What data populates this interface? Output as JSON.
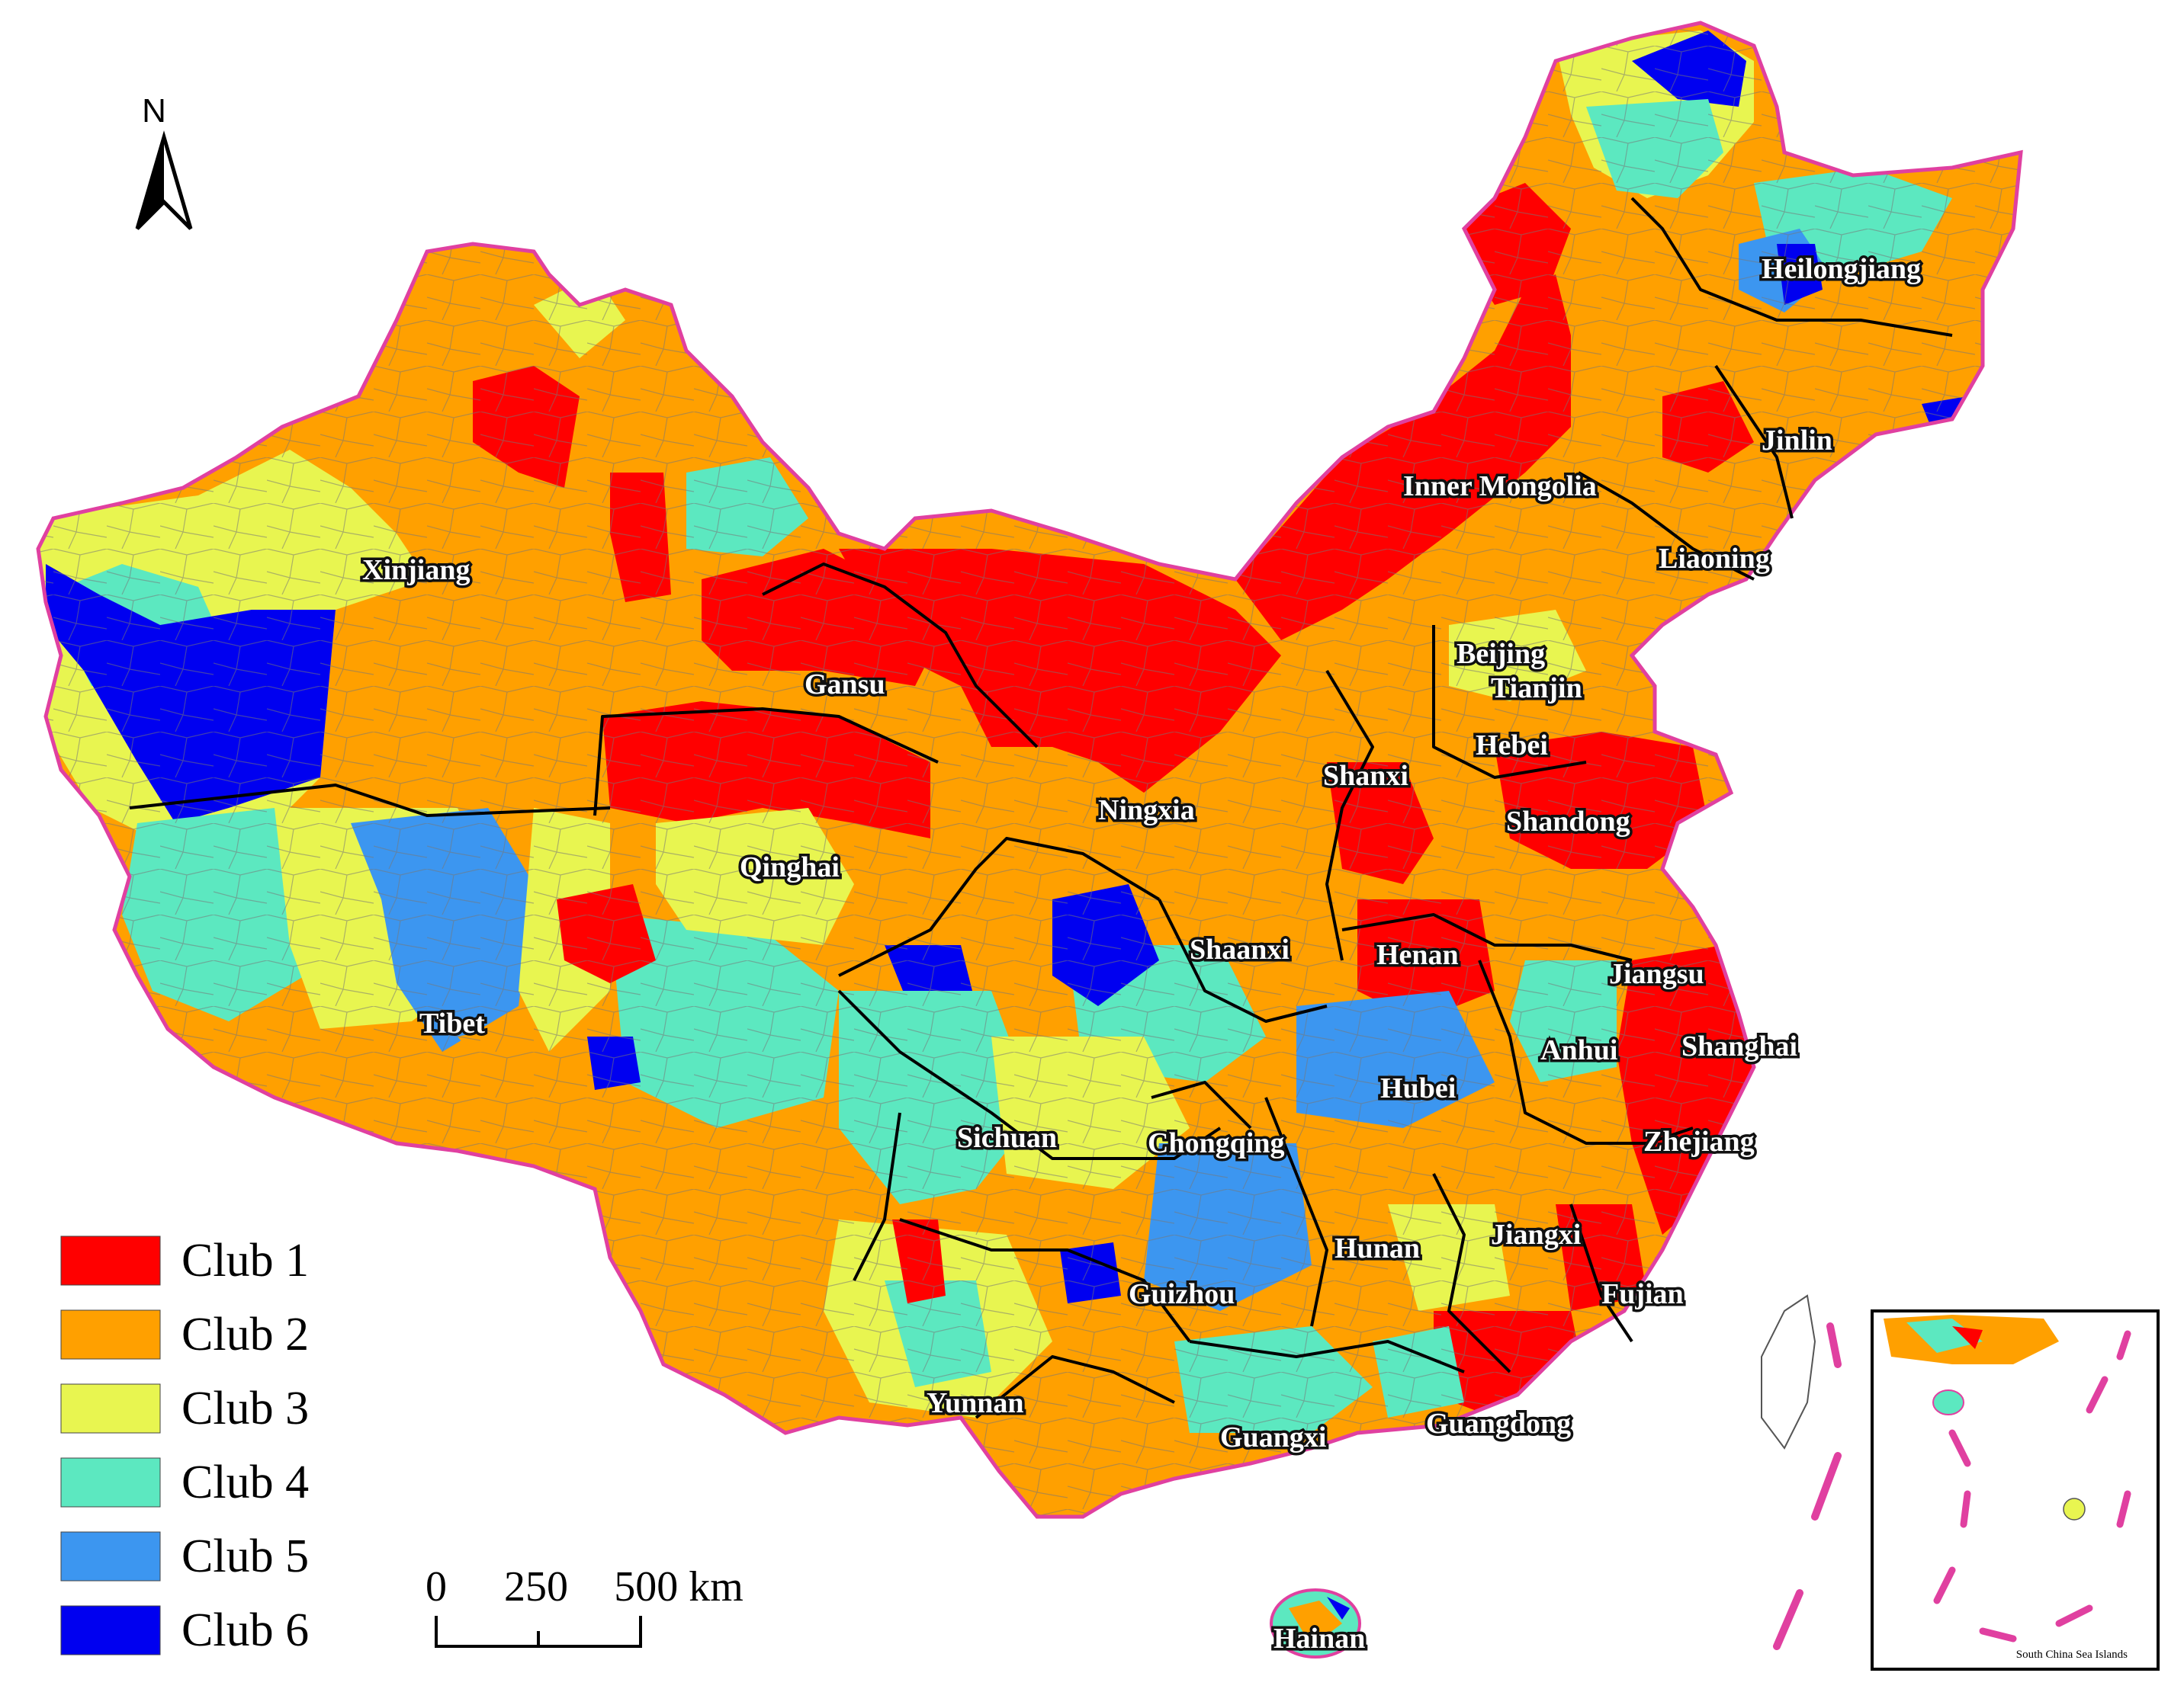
{
  "provinces": {
    "xinjiang": "Xinjiang",
    "tibet": "Tibet",
    "qinghai": "Qinghai",
    "gansu": "Gansu",
    "inner_mongolia": "Inner Mongolia",
    "heilongjiang": "Heilongjiang",
    "jinlin": "Jinlin",
    "liaoning": "Liaoning",
    "beijing": "Beijing",
    "tianjin": "Tianjin",
    "hebei": "Hebei",
    "shanxi": "Shanxi",
    "shandong": "Shandong",
    "ningxia": "Ningxia",
    "shaanxi": "Shaanxi",
    "henan": "Henan",
    "jiangsu": "Jiangsu",
    "anhui": "Anhui",
    "shanghai": "Shanghai",
    "hubei": "Hubei",
    "zhejiang": "Zhejiang",
    "sichuan": "Sichuan",
    "chongqing": "Chongqing",
    "hunan": "Hunan",
    "jiangxi": "Jiangxi",
    "fujian": "Fujian",
    "guizhou": "Guizhou",
    "yunnan": "Yunnan",
    "guangxi": "Guangxi",
    "guangdong": "Guangdong",
    "hainan": "Hainan"
  },
  "legend": [
    {
      "label": "Club 1",
      "color": "#ff0000"
    },
    {
      "label": "Club 2",
      "color": "#ffa000"
    },
    {
      "label": "Club 3",
      "color": "#e8f550"
    },
    {
      "label": "Club 4",
      "color": "#5ce8c0"
    },
    {
      "label": "Club 5",
      "color": "#3c96f0"
    },
    {
      "label": "Club 6",
      "color": "#0000f0"
    }
  ],
  "scale_bar": {
    "tick_0": "0",
    "tick_250": "250",
    "tick_500": "500 km"
  },
  "north_arrow": {
    "label": "N",
    "icon": "north-arrow-icon"
  },
  "inset": {
    "label": "South China Sea Islands"
  },
  "colors": {
    "boundary_outer": "#e040a0",
    "boundary_province": "#000000",
    "county_line": "#777777"
  }
}
